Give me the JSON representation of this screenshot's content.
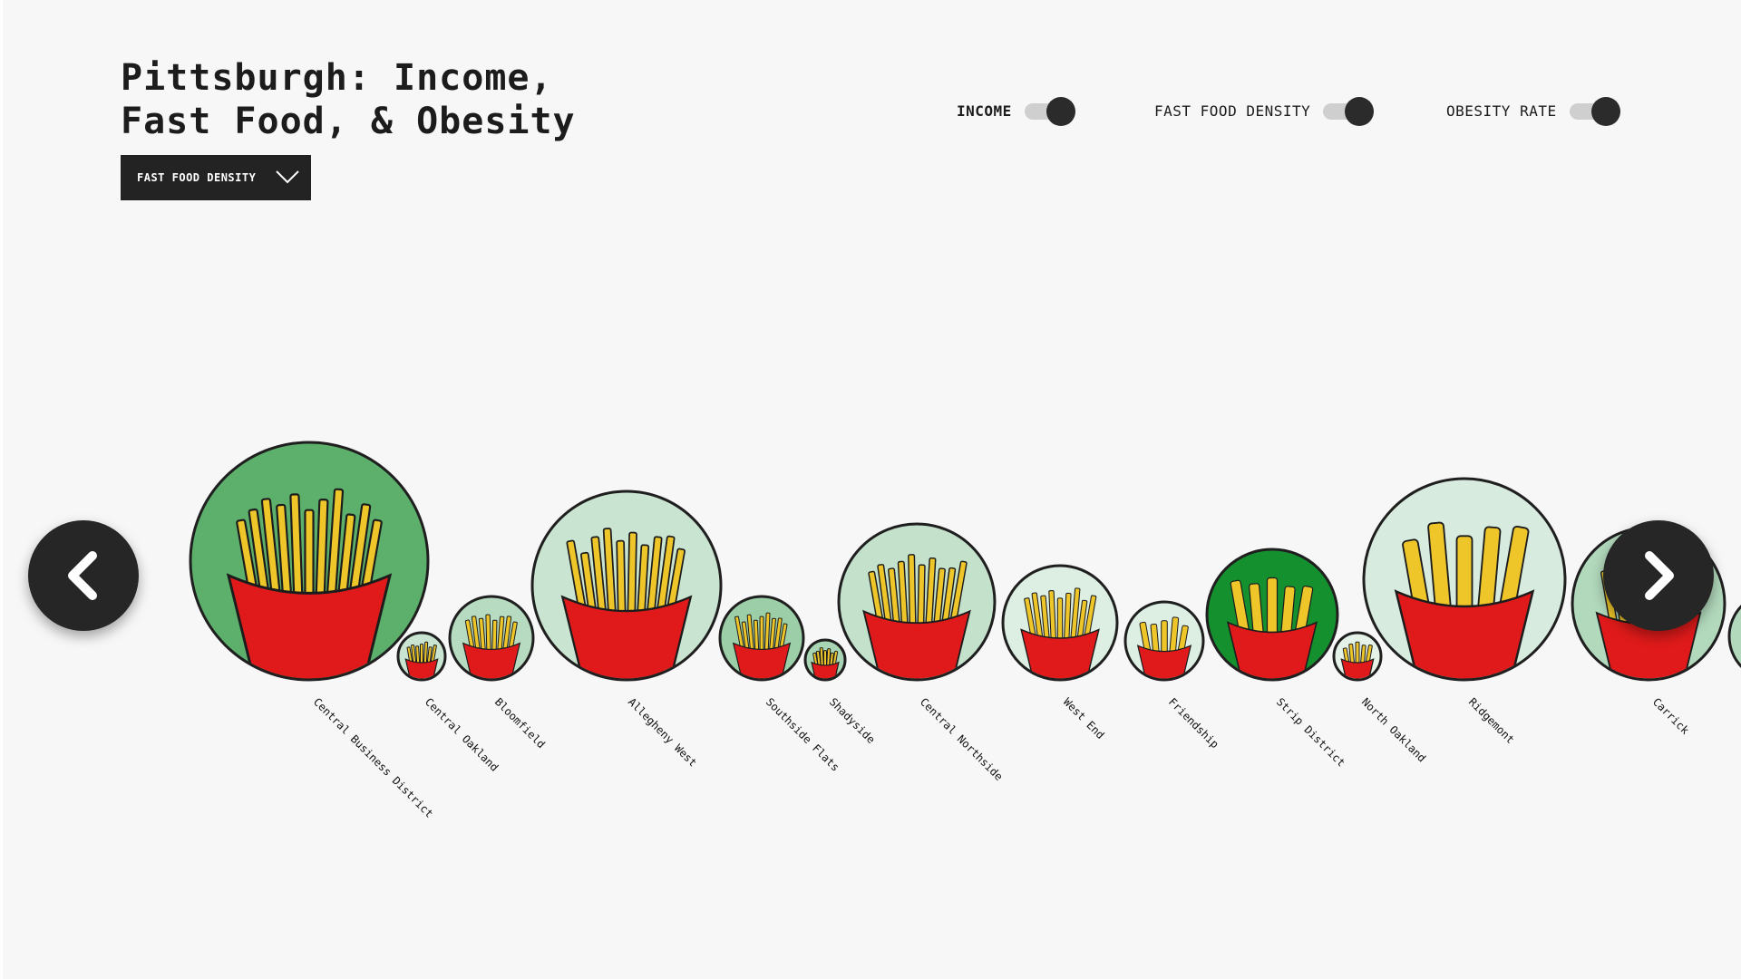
{
  "header": {
    "title_line1": "Pittsburgh: Income,",
    "title_line2": "Fast Food, & Obesity"
  },
  "dropdown": {
    "selected": "FAST FOOD DENSITY",
    "icon": "chevron-down-icon"
  },
  "toggles": [
    {
      "label": "INCOME",
      "on": true,
      "active": true
    },
    {
      "label": "FAST FOOD DENSITY",
      "on": true,
      "active": false
    },
    {
      "label": "OBESITY RATE",
      "on": true,
      "active": false
    }
  ],
  "nav": {
    "prev_icon": "chevron-left-icon",
    "next_icon": "chevron-right-icon"
  },
  "colors": {
    "background": "#f7f7f7",
    "dark": "#262626",
    "fries": "#eec62a",
    "carton": "#e01a1a"
  },
  "neighborhoods": [
    {
      "name": "Central Business District",
      "color": "#5cb06c"
    },
    {
      "name": "Central Oakland",
      "color": "#c9e4d0"
    },
    {
      "name": "Bloomfield",
      "color": "#b6dbc0"
    },
    {
      "name": "Allegheny West",
      "color": "#c9e4d0"
    },
    {
      "name": "Southside Flats",
      "color": "#9ccfa8"
    },
    {
      "name": "Shadyside",
      "color": "#a8d5b3"
    },
    {
      "name": "Central Northside",
      "color": "#c3e1cb"
    },
    {
      "name": "West End",
      "color": "#dcefe2"
    },
    {
      "name": "Friendship",
      "color": "#dcefe2"
    },
    {
      "name": "Strip District",
      "color": "#15902f"
    },
    {
      "name": "North Oakland",
      "color": "#e4f2e8"
    },
    {
      "name": "Ridgemont",
      "color": "#d7ebde"
    },
    {
      "name": "Carrick",
      "color": "#b2d9bc"
    },
    {
      "name": "",
      "color": "#b2d9bc"
    }
  ]
}
